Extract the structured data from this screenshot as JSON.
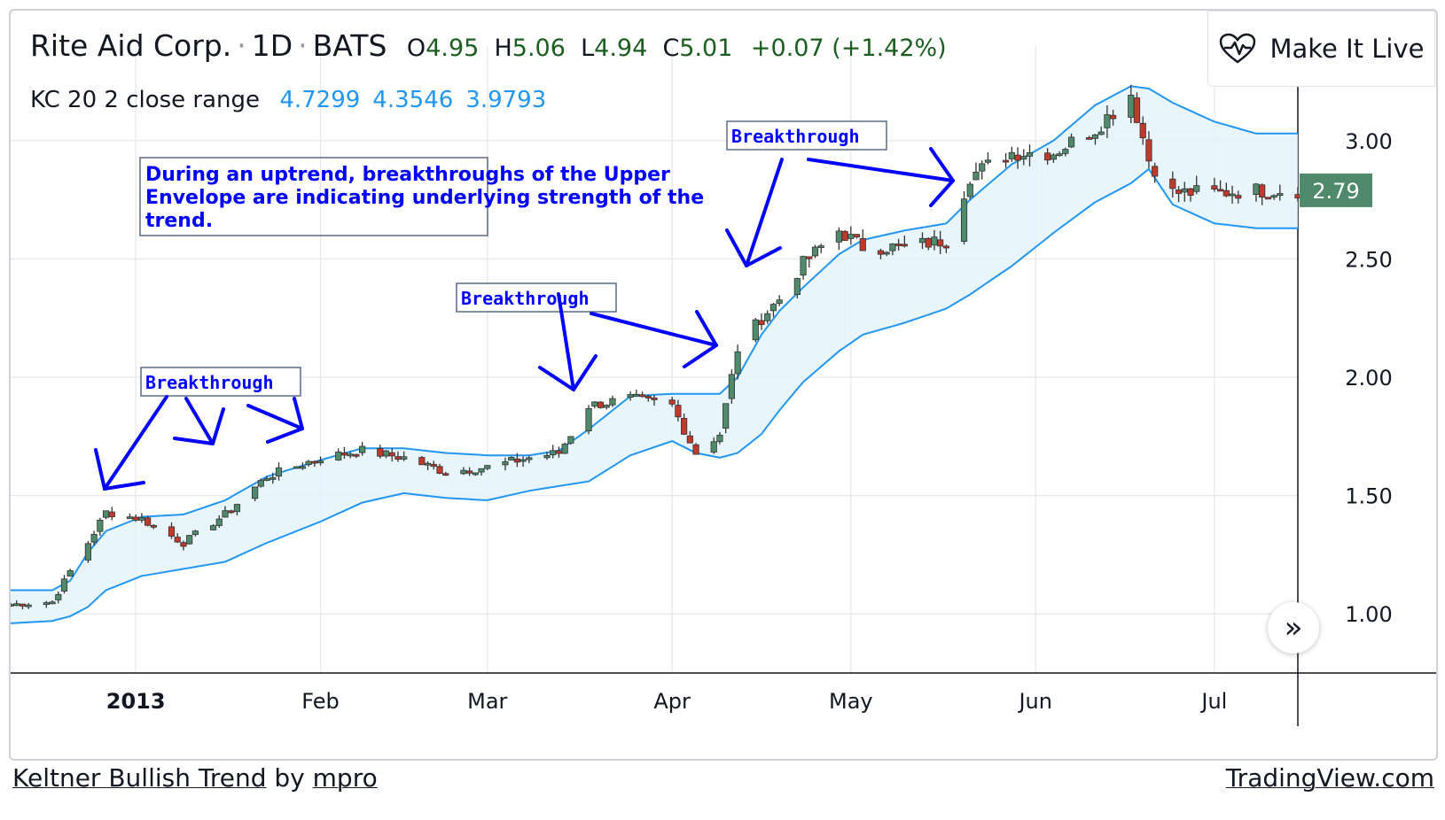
{
  "header": {
    "symbol": "Rite Aid Corp.",
    "interval": "1D",
    "exchange": "BATS",
    "open_label": "O",
    "open": "4.95",
    "high_label": "H",
    "high": "5.06",
    "low_label": "L",
    "low": "4.94",
    "close_label": "C",
    "close": "5.01",
    "change": "+0.07 (+1.42%)"
  },
  "indicator": {
    "name": "KC 20 2 close range",
    "upper": "4.7299",
    "middle": "4.3546",
    "lower": "3.9793"
  },
  "live_button": {
    "label": "Make It Live",
    "icon": "heartbeat-icon"
  },
  "scroll_button": {
    "icon": "double-chevron-right-icon",
    "glyph": "»"
  },
  "footer": {
    "idea_title": "Keltner Bullish Trend",
    "by": "by",
    "author": "mpro",
    "brand": "TradingView.com"
  },
  "colors": {
    "up": "#4f8a6b",
    "down": "#c0392b",
    "band": "#2196f3",
    "fill": "#e3f2fd",
    "annotation": "#0000ff",
    "price_tag": "#4f8a6b"
  },
  "chart_data": {
    "type": "candlestick",
    "x_tick_labels": [
      {
        "label": "2013",
        "date": "2013-01-01",
        "bold": true
      },
      {
        "label": "Feb",
        "date": "2013-02-01"
      },
      {
        "label": "Mar",
        "date": "2013-03-01"
      },
      {
        "label": "Apr",
        "date": "2013-04-01"
      },
      {
        "label": "May",
        "date": "2013-05-01"
      },
      {
        "label": "Jun",
        "date": "2013-06-01"
      },
      {
        "label": "Jul",
        "date": "2013-07-01"
      }
    ],
    "x_range": [
      "2012-12-11",
      "2013-07-15"
    ],
    "y_ticks": [
      "1.00",
      "1.50",
      "2.00",
      "2.50",
      "3.00"
    ],
    "y_range": [
      0.75,
      3.25
    ],
    "last_price": "2.79",
    "annotations": {
      "note": "During an uptrend, breakthroughs of the Upper\nEnvelope are indicating underlying strength of the\ntrend.",
      "labels": [
        "Breakthrough",
        "Breakthrough",
        "Breakthrough"
      ]
    },
    "anchors": [
      {
        "d": "2012-12-11",
        "c": 1.04,
        "u": 1.1,
        "l": 0.96
      },
      {
        "d": "2012-12-18",
        "c": 1.05,
        "u": 1.1,
        "l": 0.97
      },
      {
        "d": "2012-12-21",
        "c": 1.18,
        "u": 1.14,
        "l": 0.99
      },
      {
        "d": "2012-12-24",
        "c": 1.3,
        "u": 1.26,
        "l": 1.03
      },
      {
        "d": "2012-12-27",
        "c": 1.43,
        "u": 1.35,
        "l": 1.1
      },
      {
        "d": "2013-01-02",
        "c": 1.4,
        "u": 1.41,
        "l": 1.16
      },
      {
        "d": "2013-01-09",
        "c": 1.3,
        "u": 1.42,
        "l": 1.19
      },
      {
        "d": "2013-01-16",
        "c": 1.42,
        "u": 1.48,
        "l": 1.22
      },
      {
        "d": "2013-01-23",
        "c": 1.58,
        "u": 1.58,
        "l": 1.3
      },
      {
        "d": "2013-02-01",
        "c": 1.66,
        "u": 1.65,
        "l": 1.39
      },
      {
        "d": "2013-02-08",
        "c": 1.69,
        "u": 1.7,
        "l": 1.47
      },
      {
        "d": "2013-02-15",
        "c": 1.66,
        "u": 1.7,
        "l": 1.51
      },
      {
        "d": "2013-02-22",
        "c": 1.6,
        "u": 1.68,
        "l": 1.49
      },
      {
        "d": "2013-03-01",
        "c": 1.62,
        "u": 1.67,
        "l": 1.48
      },
      {
        "d": "2013-03-08",
        "c": 1.66,
        "u": 1.67,
        "l": 1.52
      },
      {
        "d": "2013-03-13",
        "c": 1.68,
        "u": 1.69,
        "l": 1.54
      },
      {
        "d": "2013-03-18",
        "c": 1.88,
        "u": 1.78,
        "l": 1.56
      },
      {
        "d": "2013-03-25",
        "c": 1.91,
        "u": 1.92,
        "l": 1.67
      },
      {
        "d": "2013-04-01",
        "c": 1.88,
        "u": 1.93,
        "l": 1.73
      },
      {
        "d": "2013-04-05",
        "c": 1.68,
        "u": 1.93,
        "l": 1.68
      },
      {
        "d": "2013-04-09",
        "c": 1.76,
        "u": 1.93,
        "l": 1.66
      },
      {
        "d": "2013-04-12",
        "c": 2.12,
        "u": 2.0,
        "l": 1.68
      },
      {
        "d": "2013-04-16",
        "c": 2.25,
        "u": 2.18,
        "l": 1.76
      },
      {
        "d": "2013-04-19",
        "c": 2.33,
        "u": 2.28,
        "l": 1.86
      },
      {
        "d": "2013-04-23",
        "c": 2.48,
        "u": 2.38,
        "l": 1.98
      },
      {
        "d": "2013-04-29",
        "c": 2.62,
        "u": 2.52,
        "l": 2.11
      },
      {
        "d": "2013-05-03",
        "c": 2.55,
        "u": 2.58,
        "l": 2.18
      },
      {
        "d": "2013-05-10",
        "c": 2.55,
        "u": 2.62,
        "l": 2.23
      },
      {
        "d": "2013-05-17",
        "c": 2.58,
        "u": 2.65,
        "l": 2.29
      },
      {
        "d": "2013-05-21",
        "c": 2.85,
        "u": 2.75,
        "l": 2.35
      },
      {
        "d": "2013-05-28",
        "c": 2.95,
        "u": 2.9,
        "l": 2.47
      },
      {
        "d": "2013-06-04",
        "c": 2.95,
        "u": 3.0,
        "l": 2.61
      },
      {
        "d": "2013-06-11",
        "c": 3.05,
        "u": 3.15,
        "l": 2.74
      },
      {
        "d": "2013-06-17",
        "c": 3.2,
        "u": 3.23,
        "l": 2.82
      },
      {
        "d": "2013-06-20",
        "c": 2.92,
        "u": 3.22,
        "l": 2.88
      },
      {
        "d": "2013-06-24",
        "c": 2.78,
        "u": 3.16,
        "l": 2.73
      },
      {
        "d": "2013-07-01",
        "c": 2.78,
        "u": 3.08,
        "l": 2.65
      },
      {
        "d": "2013-07-08",
        "c": 2.79,
        "u": 3.03,
        "l": 2.63
      }
    ]
  }
}
